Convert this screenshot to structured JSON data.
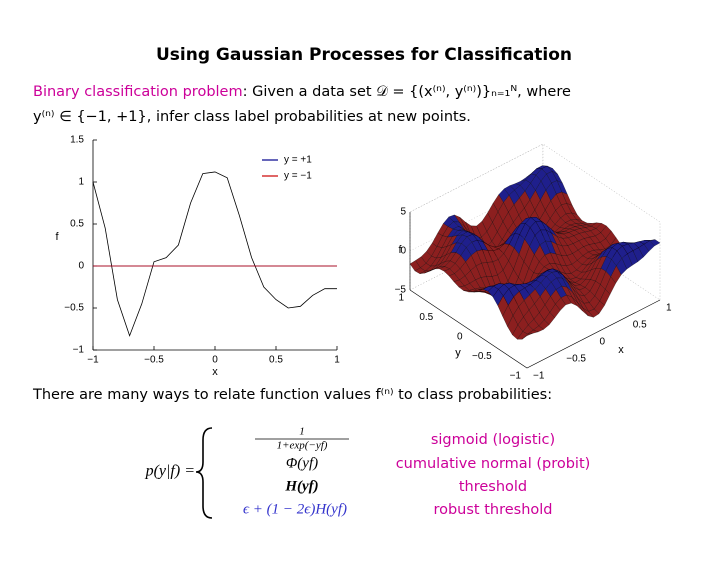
{
  "title": "Using Gaussian Processes for Classification",
  "intro": {
    "highlight": "Binary classification problem",
    "line1": ":  Given a data set 𝒟 = {(x⁽ⁿ⁾, y⁽ⁿ⁾)}ₙ₌₁ᴺ, where",
    "line2": "y⁽ⁿ⁾ ∈ {−1, +1}, infer class label probabilities at new points."
  },
  "chart_data": {
    "type": "line",
    "xlabel": "x",
    "ylabel": "f",
    "x": [
      -1,
      -0.9,
      -0.8,
      -0.7,
      -0.6,
      -0.5,
      -0.4,
      -0.3,
      -0.2,
      -0.1,
      0,
      0.1,
      0.2,
      0.3,
      0.4,
      0.5,
      0.6,
      0.7,
      0.8,
      0.9,
      1
    ],
    "series": [
      {
        "color": "#000000",
        "values": [
          1.0,
          0.45,
          -0.4,
          -0.83,
          -0.45,
          0.05,
          0.1,
          0.25,
          0.75,
          1.1,
          1.12,
          1.05,
          0.6,
          0.1,
          -0.25,
          -0.4,
          -0.5,
          -0.48,
          -0.35,
          -0.27,
          -0.27
        ]
      },
      {
        "name": "y = +1",
        "color": "#00008b",
        "values": [
          0,
          0,
          0,
          0,
          0,
          0,
          0,
          0,
          0,
          0,
          0,
          0,
          0,
          0,
          0,
          0,
          0,
          0,
          0,
          0,
          0
        ]
      },
      {
        "name": "y = −1",
        "color": "#cc0000",
        "values": [
          0,
          0,
          0,
          0,
          0,
          0,
          0,
          0,
          0,
          0,
          0,
          0,
          0,
          0,
          0,
          0,
          0,
          0,
          0,
          0,
          0
        ]
      }
    ],
    "xlim": [
      -1,
      1
    ],
    "xticks": [
      {
        "value": -1,
        "label": "−1"
      },
      {
        "value": -0.5,
        "label": "−0.5"
      },
      0,
      0.5,
      1
    ],
    "ylim": [
      -1,
      1.5
    ],
    "yticks": [
      {
        "value": -1,
        "label": "−1"
      },
      {
        "value": -0.5,
        "label": "−0.5"
      },
      0,
      0.5,
      1,
      1.5
    ],
    "legend": "upper right"
  },
  "surface_plot": {
    "zlabel": "f",
    "ylabel": "y",
    "xlabel": "x",
    "zticks": [
      {
        "value": -5,
        "label": "−5"
      },
      0,
      5
    ],
    "yticks": [
      {
        "value": -1,
        "label": "−1"
      },
      {
        "value": -0.5,
        "label": "−0.5"
      },
      0,
      0.5,
      1
    ],
    "xticks": [
      {
        "value": -1,
        "label": "−1"
      },
      {
        "value": -0.5,
        "label": "−0.5"
      },
      0,
      0.5,
      1
    ]
  },
  "relation": {
    "text": "There are many ways to relate function values f⁽ⁿ⁾ to class probabilities:",
    "lhs": "p(y|f) =",
    "fraction": {
      "numerator": "1",
      "denominator": "1+exp(−yf)"
    },
    "cases": [
      {
        "name": "sigmoid (logistic)"
      },
      {
        "formula": "Φ(yf)",
        "name": "cumulative normal (probit)"
      },
      {
        "formula": "H(yf)",
        "name": "threshold"
      },
      {
        "formula": "ϵ + (1 − 2ϵ)H(yf)",
        "name": "robust threshold"
      }
    ]
  }
}
